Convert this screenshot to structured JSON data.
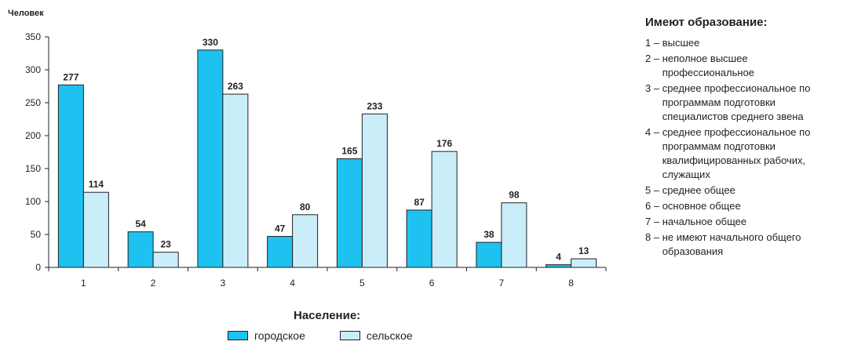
{
  "chart_data": {
    "type": "bar",
    "ylabel": "Человек",
    "xlabel": "",
    "ylim": [
      0,
      350
    ],
    "yticks": [
      0,
      50,
      100,
      150,
      200,
      250,
      300,
      350
    ],
    "categories": [
      "1",
      "2",
      "3",
      "4",
      "5",
      "6",
      "7",
      "8"
    ],
    "series": [
      {
        "name": "городское",
        "values": [
          277,
          54,
          330,
          47,
          165,
          87,
          38,
          4
        ],
        "color": "#1ec2f0"
      },
      {
        "name": "сельское",
        "values": [
          114,
          23,
          263,
          80,
          233,
          176,
          98,
          13
        ],
        "color": "#c9eefa"
      }
    ],
    "legend_title": "Население:",
    "legend_placement": "bottom",
    "grid": false
  },
  "education_legend": {
    "title": "Имеют образование:",
    "items": [
      {
        "code": "1",
        "text": "высшее"
      },
      {
        "code": "2",
        "text": "неполное высшее профессиональное"
      },
      {
        "code": "3",
        "text": "среднее профессиональное по программам подготовки специалистов среднего звена"
      },
      {
        "code": "4",
        "text": "среднее профессиональное по программам подготовки квалифицированных рабочих, служащих"
      },
      {
        "code": "5",
        "text": "среднее общее"
      },
      {
        "code": "6",
        "text": "основное общее"
      },
      {
        "code": "7",
        "text": "начальное общее"
      },
      {
        "code": "8",
        "text": "не имеют начального общего образования"
      }
    ]
  },
  "colors": {
    "text": "#231f20",
    "outline": "#231f20"
  }
}
